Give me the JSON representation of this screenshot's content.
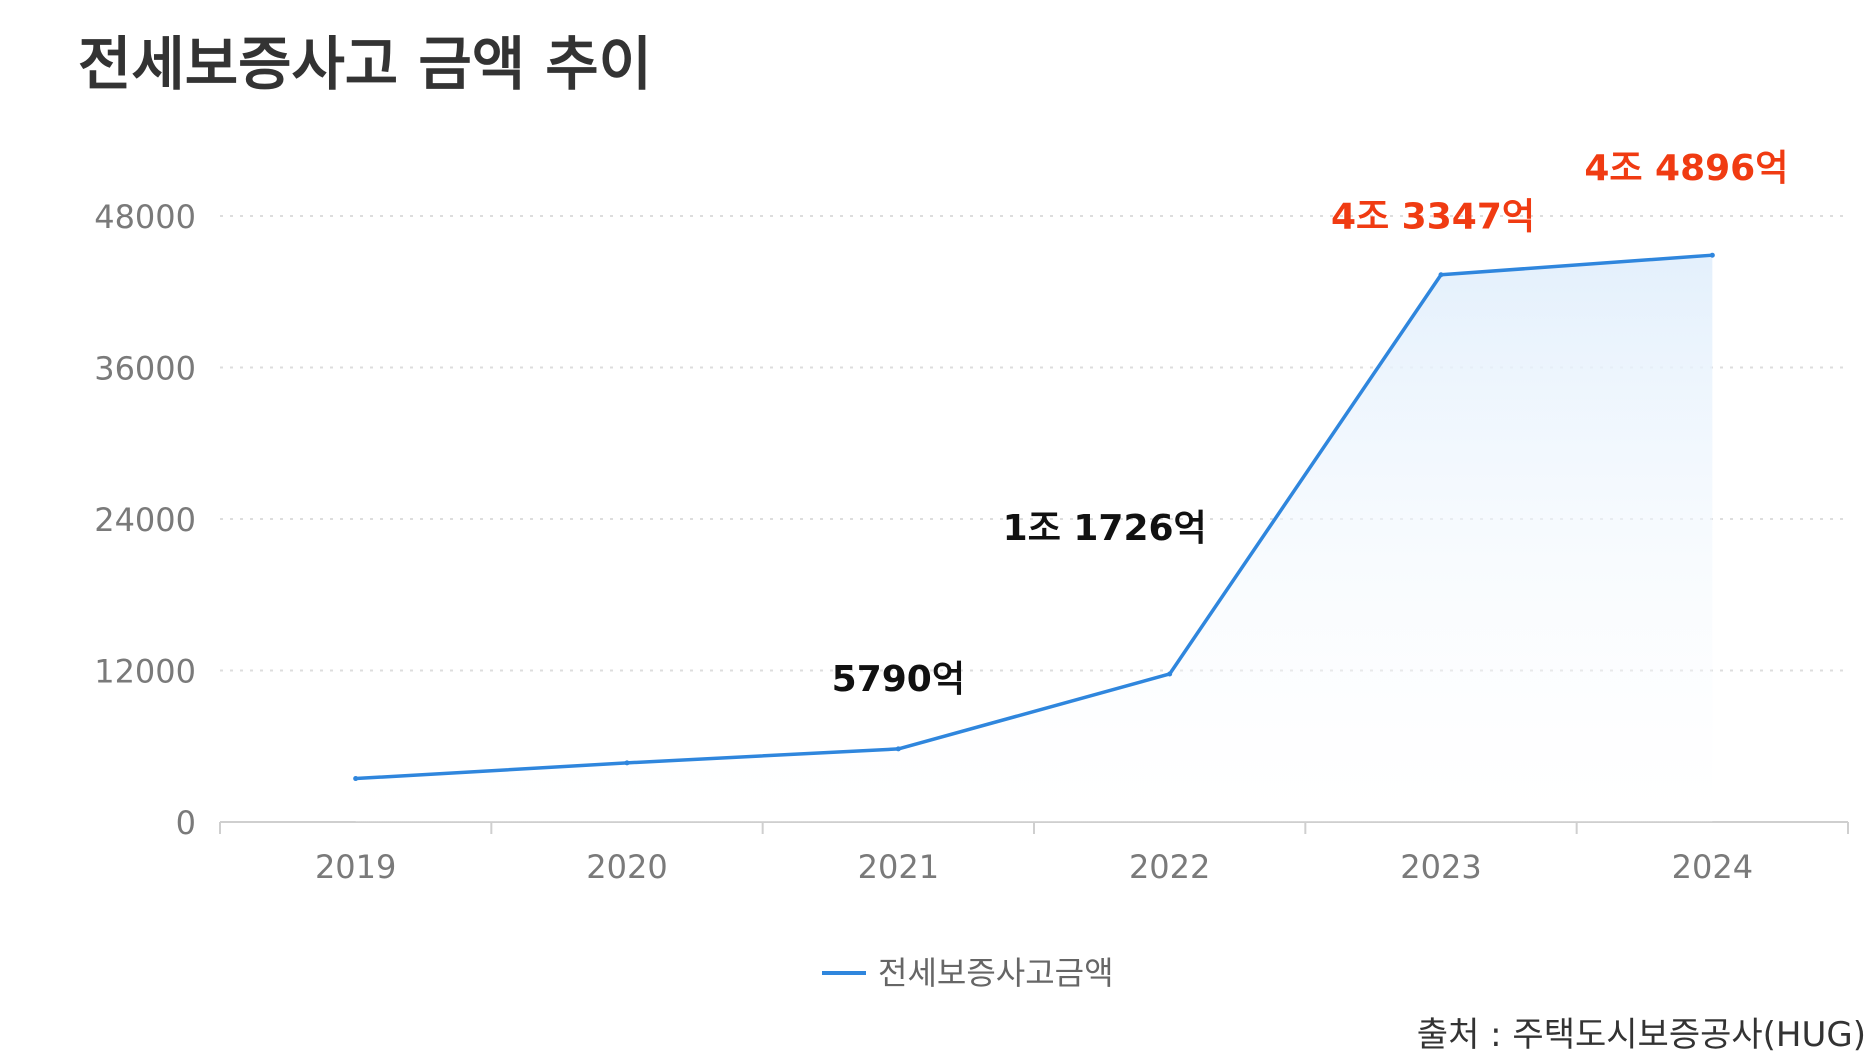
{
  "colors": {
    "line": "#2f86dd",
    "fill": "#e2effc",
    "annotation_dark": "#111111",
    "annotation_red": "#f03b12",
    "title": "#333333",
    "tick": "#7a7a7a",
    "grid": "#dddddd"
  },
  "chart_data": {
    "type": "area",
    "title": "전세보증사고 금액 추이",
    "xlabel": "",
    "ylabel": "",
    "categories": [
      "2019",
      "2020",
      "2021",
      "2022",
      "2023",
      "2024"
    ],
    "series": [
      {
        "name": "전세보증사고금액",
        "values": [
          3442,
          4682,
          5790,
          11726,
          43347,
          44896
        ]
      }
    ],
    "ylim": [
      0,
      48000
    ],
    "yticks": [
      "0",
      "12000",
      "24000",
      "36000",
      "48000"
    ],
    "grid": true,
    "legend_position": "bottom-center",
    "annotations": [
      {
        "category": "2021",
        "text": "5790억",
        "color": "dark"
      },
      {
        "category": "2022",
        "text": "1조 1726억",
        "color": "dark"
      },
      {
        "category": "2023",
        "text": "4조 3347억",
        "color": "red"
      },
      {
        "category": "2024",
        "text": "4조 4896억",
        "color": "red"
      }
    ],
    "source": "출처 : 주택도시보증공사(HUG)"
  }
}
